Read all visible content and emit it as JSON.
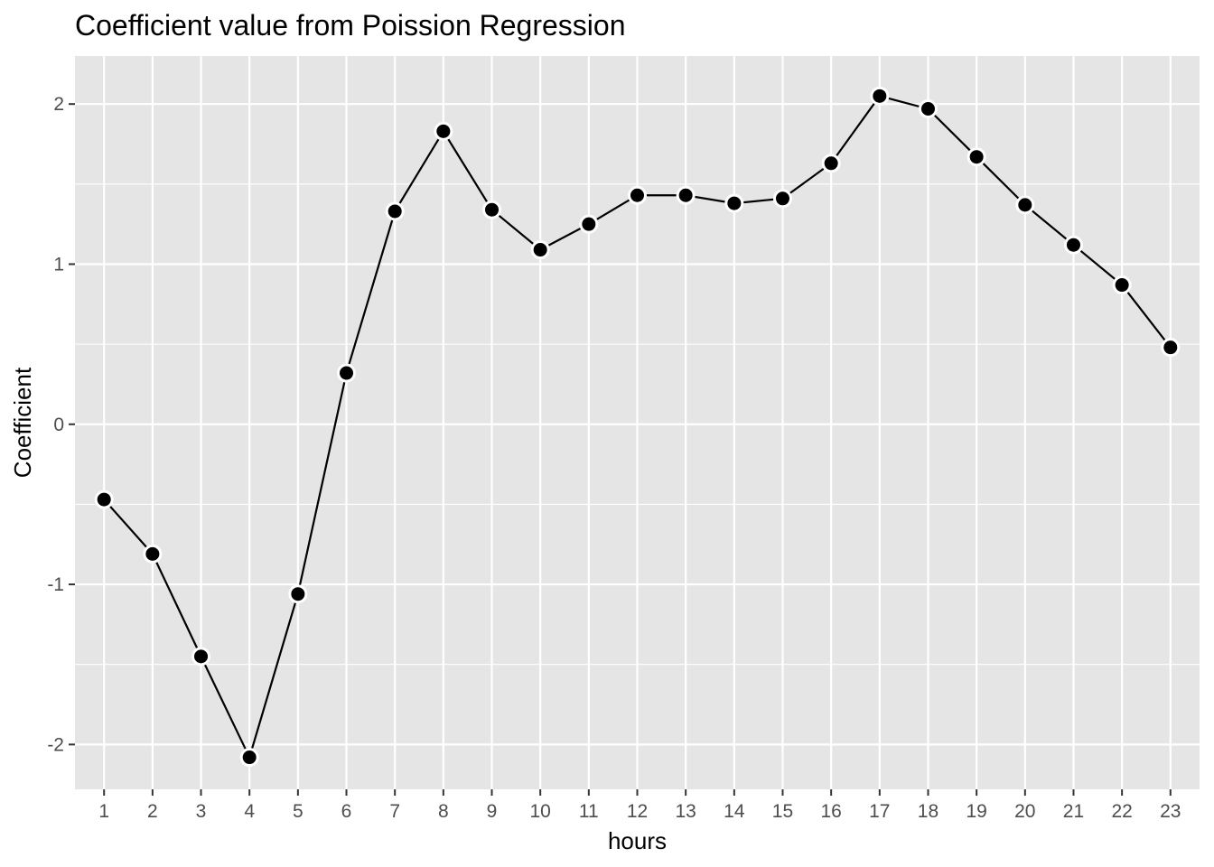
{
  "chart_data": {
    "type": "line",
    "title": "Coefficient value from Poission Regression",
    "xlabel": "hours",
    "ylabel": "Coefficient",
    "x": [
      1,
      2,
      3,
      4,
      5,
      6,
      7,
      8,
      9,
      10,
      11,
      12,
      13,
      14,
      15,
      16,
      17,
      18,
      19,
      20,
      21,
      22,
      23
    ],
    "series": [
      {
        "values": [
          -0.47,
          -0.81,
          -1.45,
          -2.08,
          -1.06,
          0.32,
          1.33,
          1.83,
          1.34,
          1.09,
          1.25,
          1.43,
          1.43,
          1.38,
          1.41,
          1.63,
          2.05,
          1.97,
          1.67,
          1.37,
          1.12,
          0.87,
          0.48
        ]
      }
    ],
    "x_ticks": [
      "1",
      "2",
      "3",
      "4",
      "5",
      "6",
      "7",
      "8",
      "9",
      "10",
      "11",
      "12",
      "13",
      "14",
      "15",
      "16",
      "17",
      "18",
      "19",
      "20",
      "21",
      "22",
      "23"
    ],
    "y_ticks": [
      -2,
      -1,
      0,
      1,
      2
    ],
    "y_tick_labels": [
      "-2",
      "-1",
      "0",
      "1",
      "2"
    ],
    "xlim": [
      0.4,
      23.6
    ],
    "ylim": [
      -2.28,
      2.3
    ],
    "grid": true,
    "colors": {
      "panel_background": "#e5e5e5",
      "grid_line": "#ffffff",
      "series_line": "#000000",
      "marker_fill": "#000000",
      "marker_stroke": "#ffffff",
      "tick_text": "#4d4d4d",
      "tick_mark": "#333333"
    }
  }
}
